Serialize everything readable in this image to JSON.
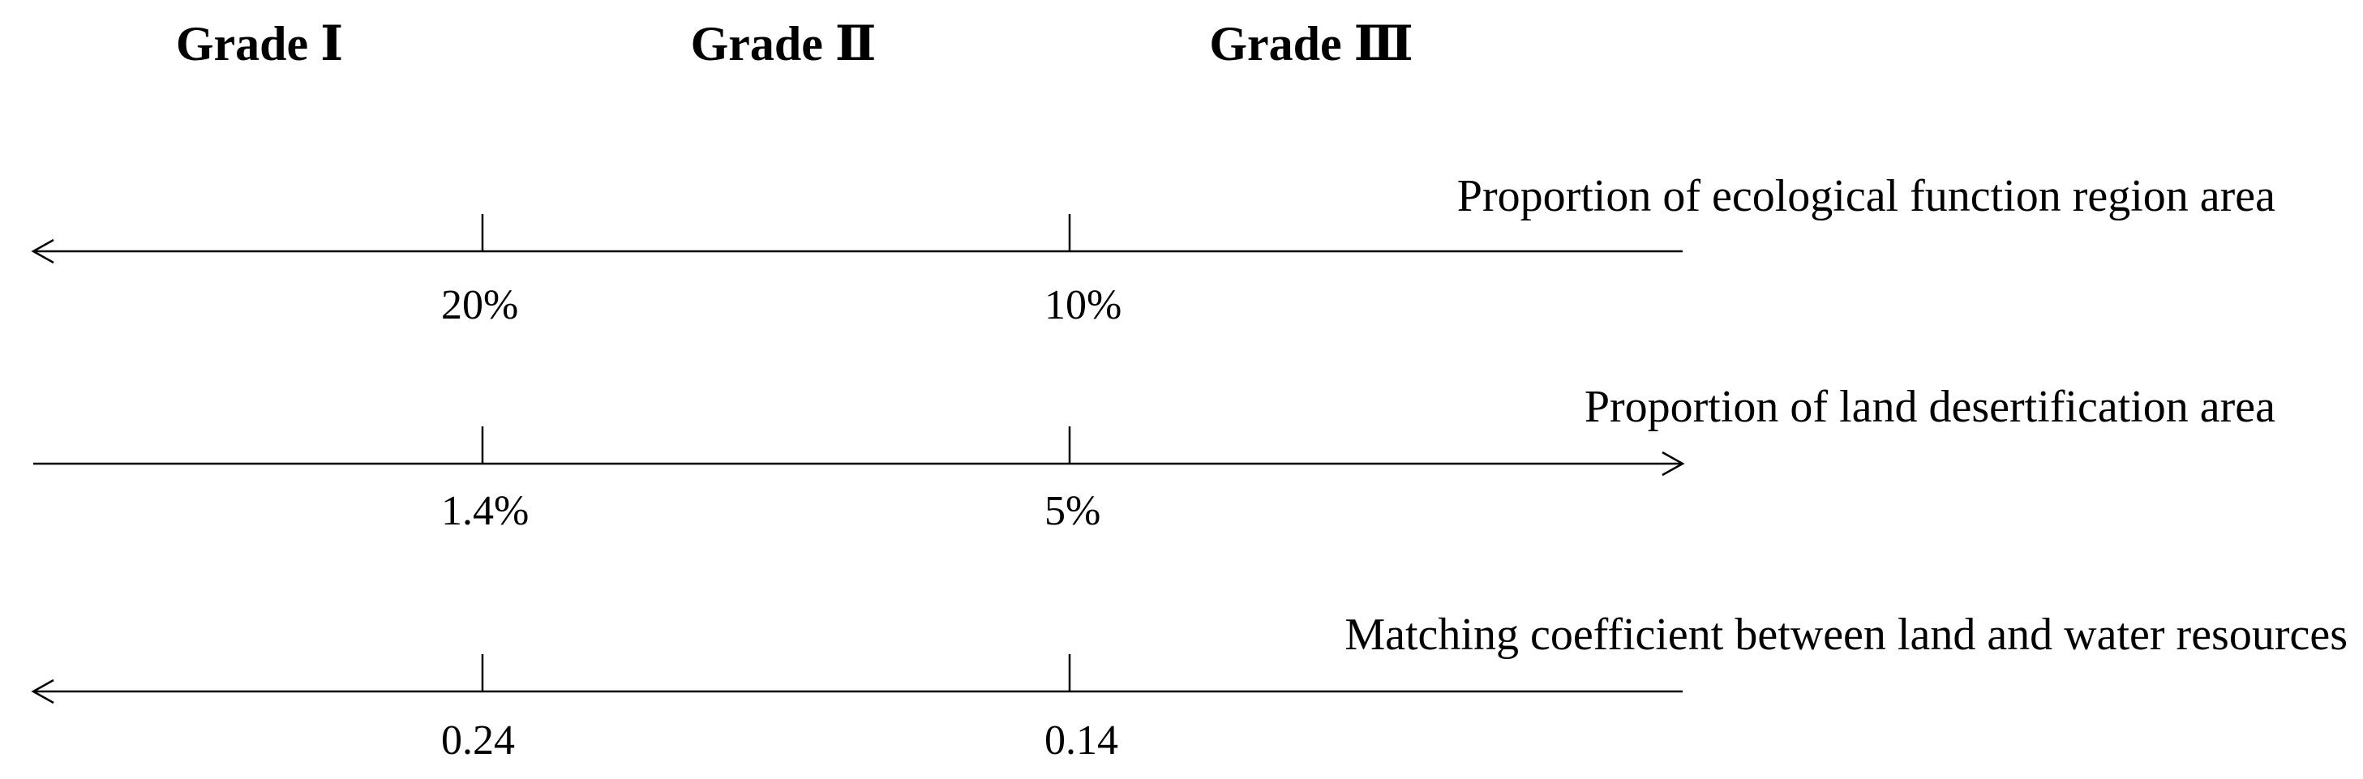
{
  "grades": [
    "Grade Ⅰ",
    "Grade Ⅱ",
    "Grade Ⅲ"
  ],
  "axes": [
    {
      "label": "Proportion of ecological function region area",
      "ticks": [
        "20%",
        "10%"
      ]
    },
    {
      "label": "Proportion of land desertification area",
      "ticks": [
        "1.4%",
        "5%"
      ]
    },
    {
      "label": "Matching coefficient between land and water resources",
      "ticks": [
        "0.24",
        "0.14"
      ]
    }
  ]
}
